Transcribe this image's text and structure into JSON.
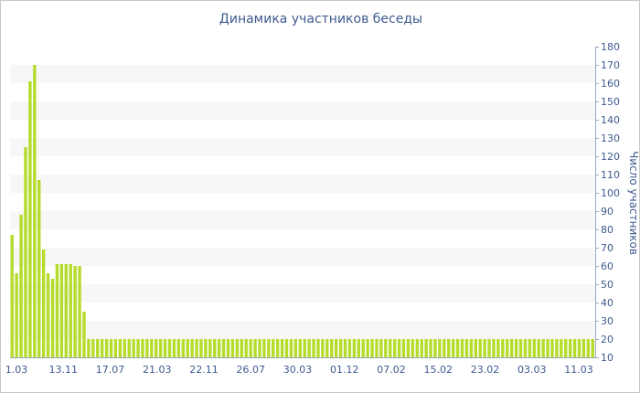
{
  "chart_data": {
    "type": "bar",
    "title": "Динамика участников беседы",
    "ylabel": "Число участников",
    "xlabel": "",
    "ylim": [
      10,
      180
    ],
    "yticks": [
      10,
      20,
      30,
      40,
      50,
      60,
      70,
      80,
      90,
      100,
      110,
      120,
      130,
      140,
      150,
      160,
      170,
      180
    ],
    "y_axis_position": "right",
    "grid": "horizontal bands",
    "x_tick_labels": [
      "1.03",
      "13.11",
      "17.07",
      "21.03",
      "22.11",
      "26.07",
      "30.03",
      "01.12",
      "07.02",
      "15.02",
      "23.02",
      "03.03",
      "11.03"
    ],
    "values": [
      77,
      56,
      88,
      125,
      161,
      170,
      107,
      69,
      56,
      53,
      61,
      61,
      61,
      61,
      60,
      60,
      35,
      20,
      20,
      20,
      20,
      20,
      20,
      20,
      20,
      20,
      20,
      20,
      20,
      20,
      20,
      20,
      20,
      20,
      20,
      20,
      20,
      20,
      20,
      20,
      20,
      20,
      20,
      20,
      20,
      20,
      20,
      20,
      20,
      20,
      20,
      20,
      20,
      20,
      20,
      20,
      20,
      20,
      20,
      20,
      20,
      20,
      20,
      20,
      20,
      20,
      20,
      20,
      20,
      20,
      20,
      20,
      20,
      20,
      20,
      20,
      20,
      20,
      20,
      20,
      20,
      20,
      20,
      20,
      20,
      20,
      20,
      20,
      20,
      20,
      20,
      20,
      20,
      20,
      20,
      20,
      20,
      20,
      20,
      20,
      20,
      20,
      20,
      20,
      20,
      20,
      20,
      20,
      20,
      20,
      20,
      20,
      20,
      20,
      20,
      20,
      20,
      20,
      20,
      20,
      20,
      20,
      20,
      20,
      20,
      20,
      20,
      20,
      20,
      20
    ],
    "bar_color": "#b5dc2c",
    "band_color": "#f7f7f7",
    "text_color": "#3e5a8f"
  }
}
